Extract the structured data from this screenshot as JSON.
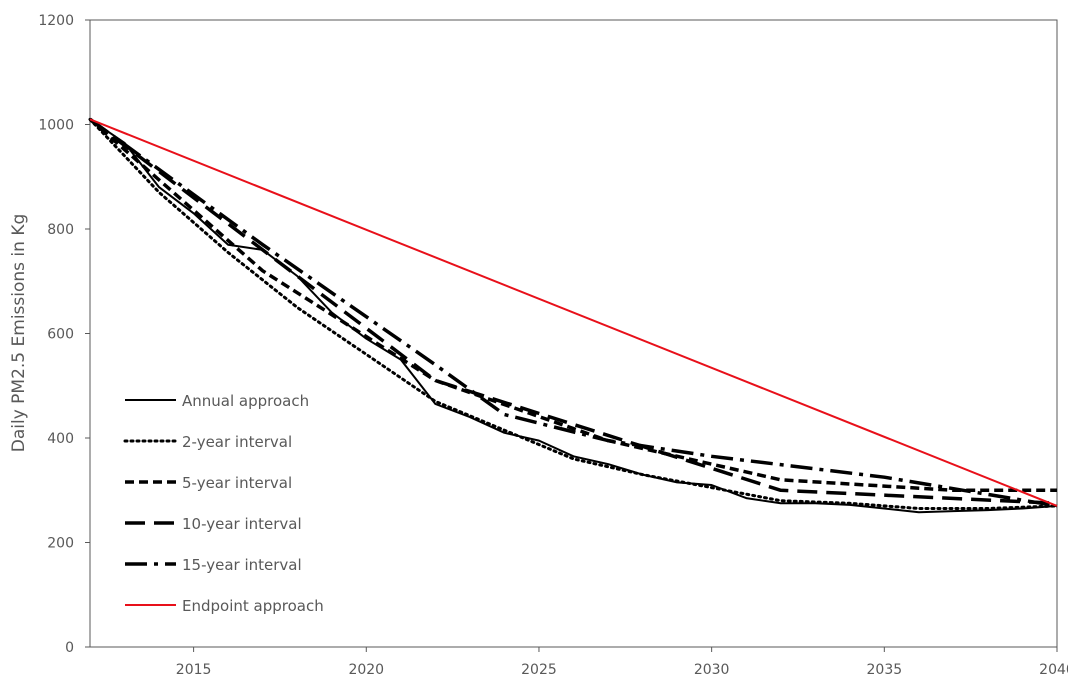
{
  "chart_data": {
    "type": "line",
    "title": "",
    "xlabel": "",
    "ylabel": "Daily PM2.5 Emissions in Kg",
    "xlim": [
      2012,
      2040
    ],
    "ylim": [
      0,
      1200
    ],
    "x_ticks": [
      2015,
      2020,
      2025,
      2030,
      2035,
      2040
    ],
    "y_ticks": [
      0,
      200,
      400,
      600,
      800,
      1000,
      1200
    ],
    "grid": false,
    "legend_position": "left-middle",
    "series": [
      {
        "name": "Annual approach",
        "color": "#000000",
        "dash": "solid",
        "points": [
          [
            2012,
            1010
          ],
          [
            2013,
            965
          ],
          [
            2014,
            880
          ],
          [
            2015,
            830
          ],
          [
            2016,
            770
          ],
          [
            2017,
            760
          ],
          [
            2018,
            710
          ],
          [
            2019,
            640
          ],
          [
            2020,
            590
          ],
          [
            2021,
            550
          ],
          [
            2022,
            465
          ],
          [
            2023,
            440
          ],
          [
            2024,
            410
          ],
          [
            2025,
            395
          ],
          [
            2026,
            365
          ],
          [
            2027,
            350
          ],
          [
            2028,
            330
          ],
          [
            2029,
            315
          ],
          [
            2030,
            310
          ],
          [
            2031,
            285
          ],
          [
            2032,
            275
          ],
          [
            2033,
            275
          ],
          [
            2034,
            272
          ],
          [
            2035,
            265
          ],
          [
            2036,
            258
          ],
          [
            2037,
            260
          ],
          [
            2038,
            262
          ],
          [
            2039,
            265
          ],
          [
            2040,
            270
          ]
        ]
      },
      {
        "name": "2-year interval",
        "color": "#000000",
        "dash": "dotted",
        "points": [
          [
            2012,
            1010
          ],
          [
            2014,
            870
          ],
          [
            2016,
            755
          ],
          [
            2018,
            650
          ],
          [
            2020,
            560
          ],
          [
            2022,
            470
          ],
          [
            2024,
            415
          ],
          [
            2026,
            360
          ],
          [
            2028,
            330
          ],
          [
            2030,
            305
          ],
          [
            2032,
            280
          ],
          [
            2034,
            275
          ],
          [
            2036,
            265
          ],
          [
            2038,
            265
          ],
          [
            2040,
            270
          ]
        ]
      },
      {
        "name": "5-year interval",
        "color": "#000000",
        "dash": "short-dash",
        "points": [
          [
            2012,
            1010
          ],
          [
            2017,
            720
          ],
          [
            2022,
            510
          ],
          [
            2027,
            395
          ],
          [
            2032,
            320
          ],
          [
            2037,
            300
          ],
          [
            2040,
            300
          ]
        ]
      },
      {
        "name": "10-year interval",
        "color": "#000000",
        "dash": "long-dash",
        "points": [
          [
            2012,
            1010
          ],
          [
            2022,
            510
          ],
          [
            2032,
            300
          ],
          [
            2040,
            275
          ]
        ]
      },
      {
        "name": "15-year interval",
        "color": "#000000",
        "dash": "dash-dot",
        "points": [
          [
            2012,
            1010
          ],
          [
            2017,
            770
          ],
          [
            2022,
            540
          ],
          [
            2024,
            445
          ],
          [
            2027,
            395
          ],
          [
            2030,
            365
          ],
          [
            2035,
            325
          ],
          [
            2040,
            270
          ]
        ]
      },
      {
        "name": "Endpoint approach",
        "color": "#e8101a",
        "dash": "solid",
        "points": [
          [
            2012,
            1010
          ],
          [
            2040,
            270
          ]
        ]
      }
    ]
  }
}
